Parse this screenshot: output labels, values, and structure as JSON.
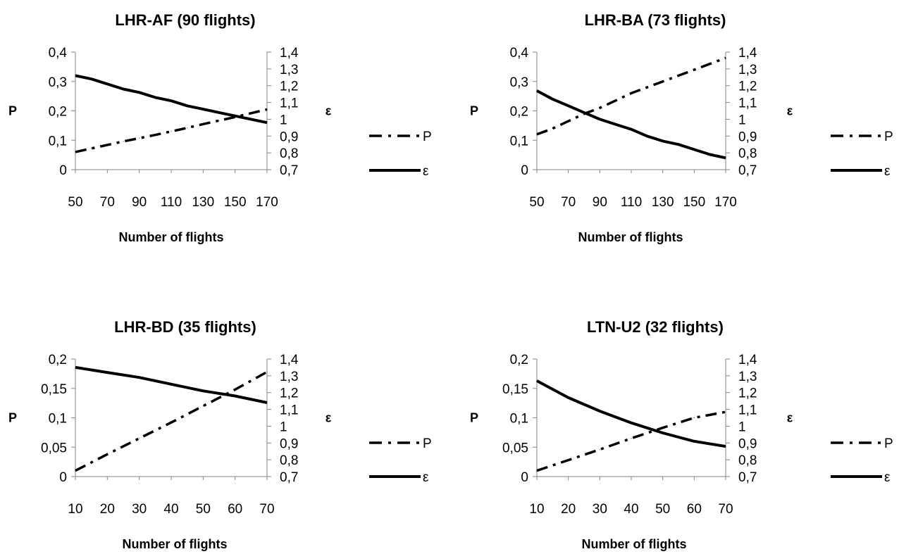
{
  "colors": {
    "background": "#ffffff",
    "ink": "#000000",
    "axis": "#868686"
  },
  "chart_data": [
    {
      "type": "line",
      "title": "LHR-AF (90 flights)",
      "xlabel": "Number of flights",
      "ylabel": "P",
      "y2label": "ε",
      "x": [
        50,
        60,
        70,
        80,
        90,
        100,
        110,
        120,
        130,
        140,
        150,
        160,
        170
      ],
      "x_ticks": [
        "50",
        "70",
        "90",
        "110",
        "130",
        "150",
        "170"
      ],
      "xlim": [
        50,
        170
      ],
      "ylim": [
        0,
        0.4
      ],
      "y_ticks": [
        "0",
        "0,1",
        "0,2",
        "0,3",
        "0,4"
      ],
      "y2lim": [
        0.7,
        1.4
      ],
      "y2_ticks": [
        "0,7",
        "0,8",
        "0,9",
        "1",
        "1,1",
        "1,2",
        "1,3",
        "1,4"
      ],
      "series": [
        {
          "name": "P",
          "axis": "left",
          "style": "dash-dot",
          "values": [
            0.06,
            0.072,
            0.084,
            0.096,
            0.107,
            0.118,
            0.13,
            0.142,
            0.155,
            0.167,
            0.179,
            0.192,
            0.205
          ]
        },
        {
          "name": "ε",
          "axis": "right",
          "style": "solid",
          "values": [
            1.26,
            1.24,
            1.21,
            1.18,
            1.16,
            1.13,
            1.11,
            1.08,
            1.06,
            1.04,
            1.02,
            1.0,
            0.98
          ]
        }
      ],
      "legend": "right"
    },
    {
      "type": "line",
      "title": "LHR-BA (73 flights)",
      "xlabel": "Number of flights",
      "ylabel": "P",
      "y2label": "ε",
      "x": [
        50,
        60,
        70,
        80,
        90,
        100,
        110,
        120,
        130,
        140,
        150,
        160,
        170
      ],
      "x_ticks": [
        "50",
        "70",
        "90",
        "110",
        "130",
        "150",
        "170"
      ],
      "xlim": [
        50,
        170
      ],
      "ylim": [
        0,
        0.4
      ],
      "y_ticks": [
        "0",
        "0,1",
        "0,2",
        "0,3",
        "0,4"
      ],
      "y2lim": [
        0.7,
        1.4
      ],
      "y2_ticks": [
        "0,7",
        "0,8",
        "0,9",
        "1",
        "1,1",
        "1,2",
        "1,3",
        "1,4"
      ],
      "series": [
        {
          "name": "P",
          "axis": "left",
          "style": "dash-dot",
          "values": [
            0.12,
            0.14,
            0.165,
            0.19,
            0.21,
            0.235,
            0.26,
            0.28,
            0.3,
            0.32,
            0.34,
            0.36,
            0.38
          ]
        },
        {
          "name": "ε",
          "axis": "right",
          "style": "solid",
          "values": [
            1.17,
            1.12,
            1.08,
            1.04,
            1.0,
            0.97,
            0.94,
            0.9,
            0.87,
            0.85,
            0.82,
            0.79,
            0.77
          ]
        }
      ],
      "legend": "right"
    },
    {
      "type": "line",
      "title": "LHR-BD (35 flights)",
      "xlabel": "Number of flights",
      "ylabel": "P",
      "y2label": "ε",
      "x": [
        10,
        20,
        30,
        40,
        50,
        60,
        70
      ],
      "x_ticks": [
        "10",
        "20",
        "30",
        "40",
        "50",
        "60",
        "70"
      ],
      "xlim": [
        10,
        70
      ],
      "ylim": [
        0,
        0.2
      ],
      "y_ticks": [
        "0",
        "0,05",
        "0,1",
        "0,15",
        "0,2"
      ],
      "y2lim": [
        0.7,
        1.4
      ],
      "y2_ticks": [
        "0,7",
        "0,8",
        "0,9",
        "1",
        "1,1",
        "1,2",
        "1,3",
        "1,4"
      ],
      "series": [
        {
          "name": "P",
          "axis": "left",
          "style": "dash-dot",
          "values": [
            0.01,
            0.038,
            0.065,
            0.092,
            0.12,
            0.148,
            0.178
          ]
        },
        {
          "name": "ε",
          "axis": "right",
          "style": "solid",
          "values": [
            1.35,
            1.32,
            1.29,
            1.25,
            1.21,
            1.18,
            1.14
          ]
        }
      ],
      "legend": "right"
    },
    {
      "type": "line",
      "title": "LTN-U2 (32 flights)",
      "xlabel": "Number of flights",
      "ylabel": "P",
      "y2label": "ε",
      "x": [
        10,
        20,
        30,
        40,
        50,
        60,
        70
      ],
      "x_ticks": [
        "10",
        "20",
        "30",
        "40",
        "50",
        "60",
        "70"
      ],
      "xlim": [
        10,
        70
      ],
      "ylim": [
        0,
        0.2
      ],
      "y_ticks": [
        "0",
        "0,05",
        "0,1",
        "0,15",
        "0,2"
      ],
      "y2lim": [
        0.7,
        1.4
      ],
      "y2_ticks": [
        "0,7",
        "0,8",
        "0,9",
        "1",
        "1,1",
        "1,2",
        "1,3",
        "1,4"
      ],
      "series": [
        {
          "name": "P",
          "axis": "left",
          "style": "dash-dot",
          "values": [
            0.01,
            0.028,
            0.046,
            0.065,
            0.083,
            0.1,
            0.11
          ]
        },
        {
          "name": "ε",
          "axis": "right",
          "style": "solid",
          "values": [
            1.27,
            1.17,
            1.09,
            1.02,
            0.96,
            0.91,
            0.88
          ]
        }
      ],
      "legend": "right"
    }
  ]
}
